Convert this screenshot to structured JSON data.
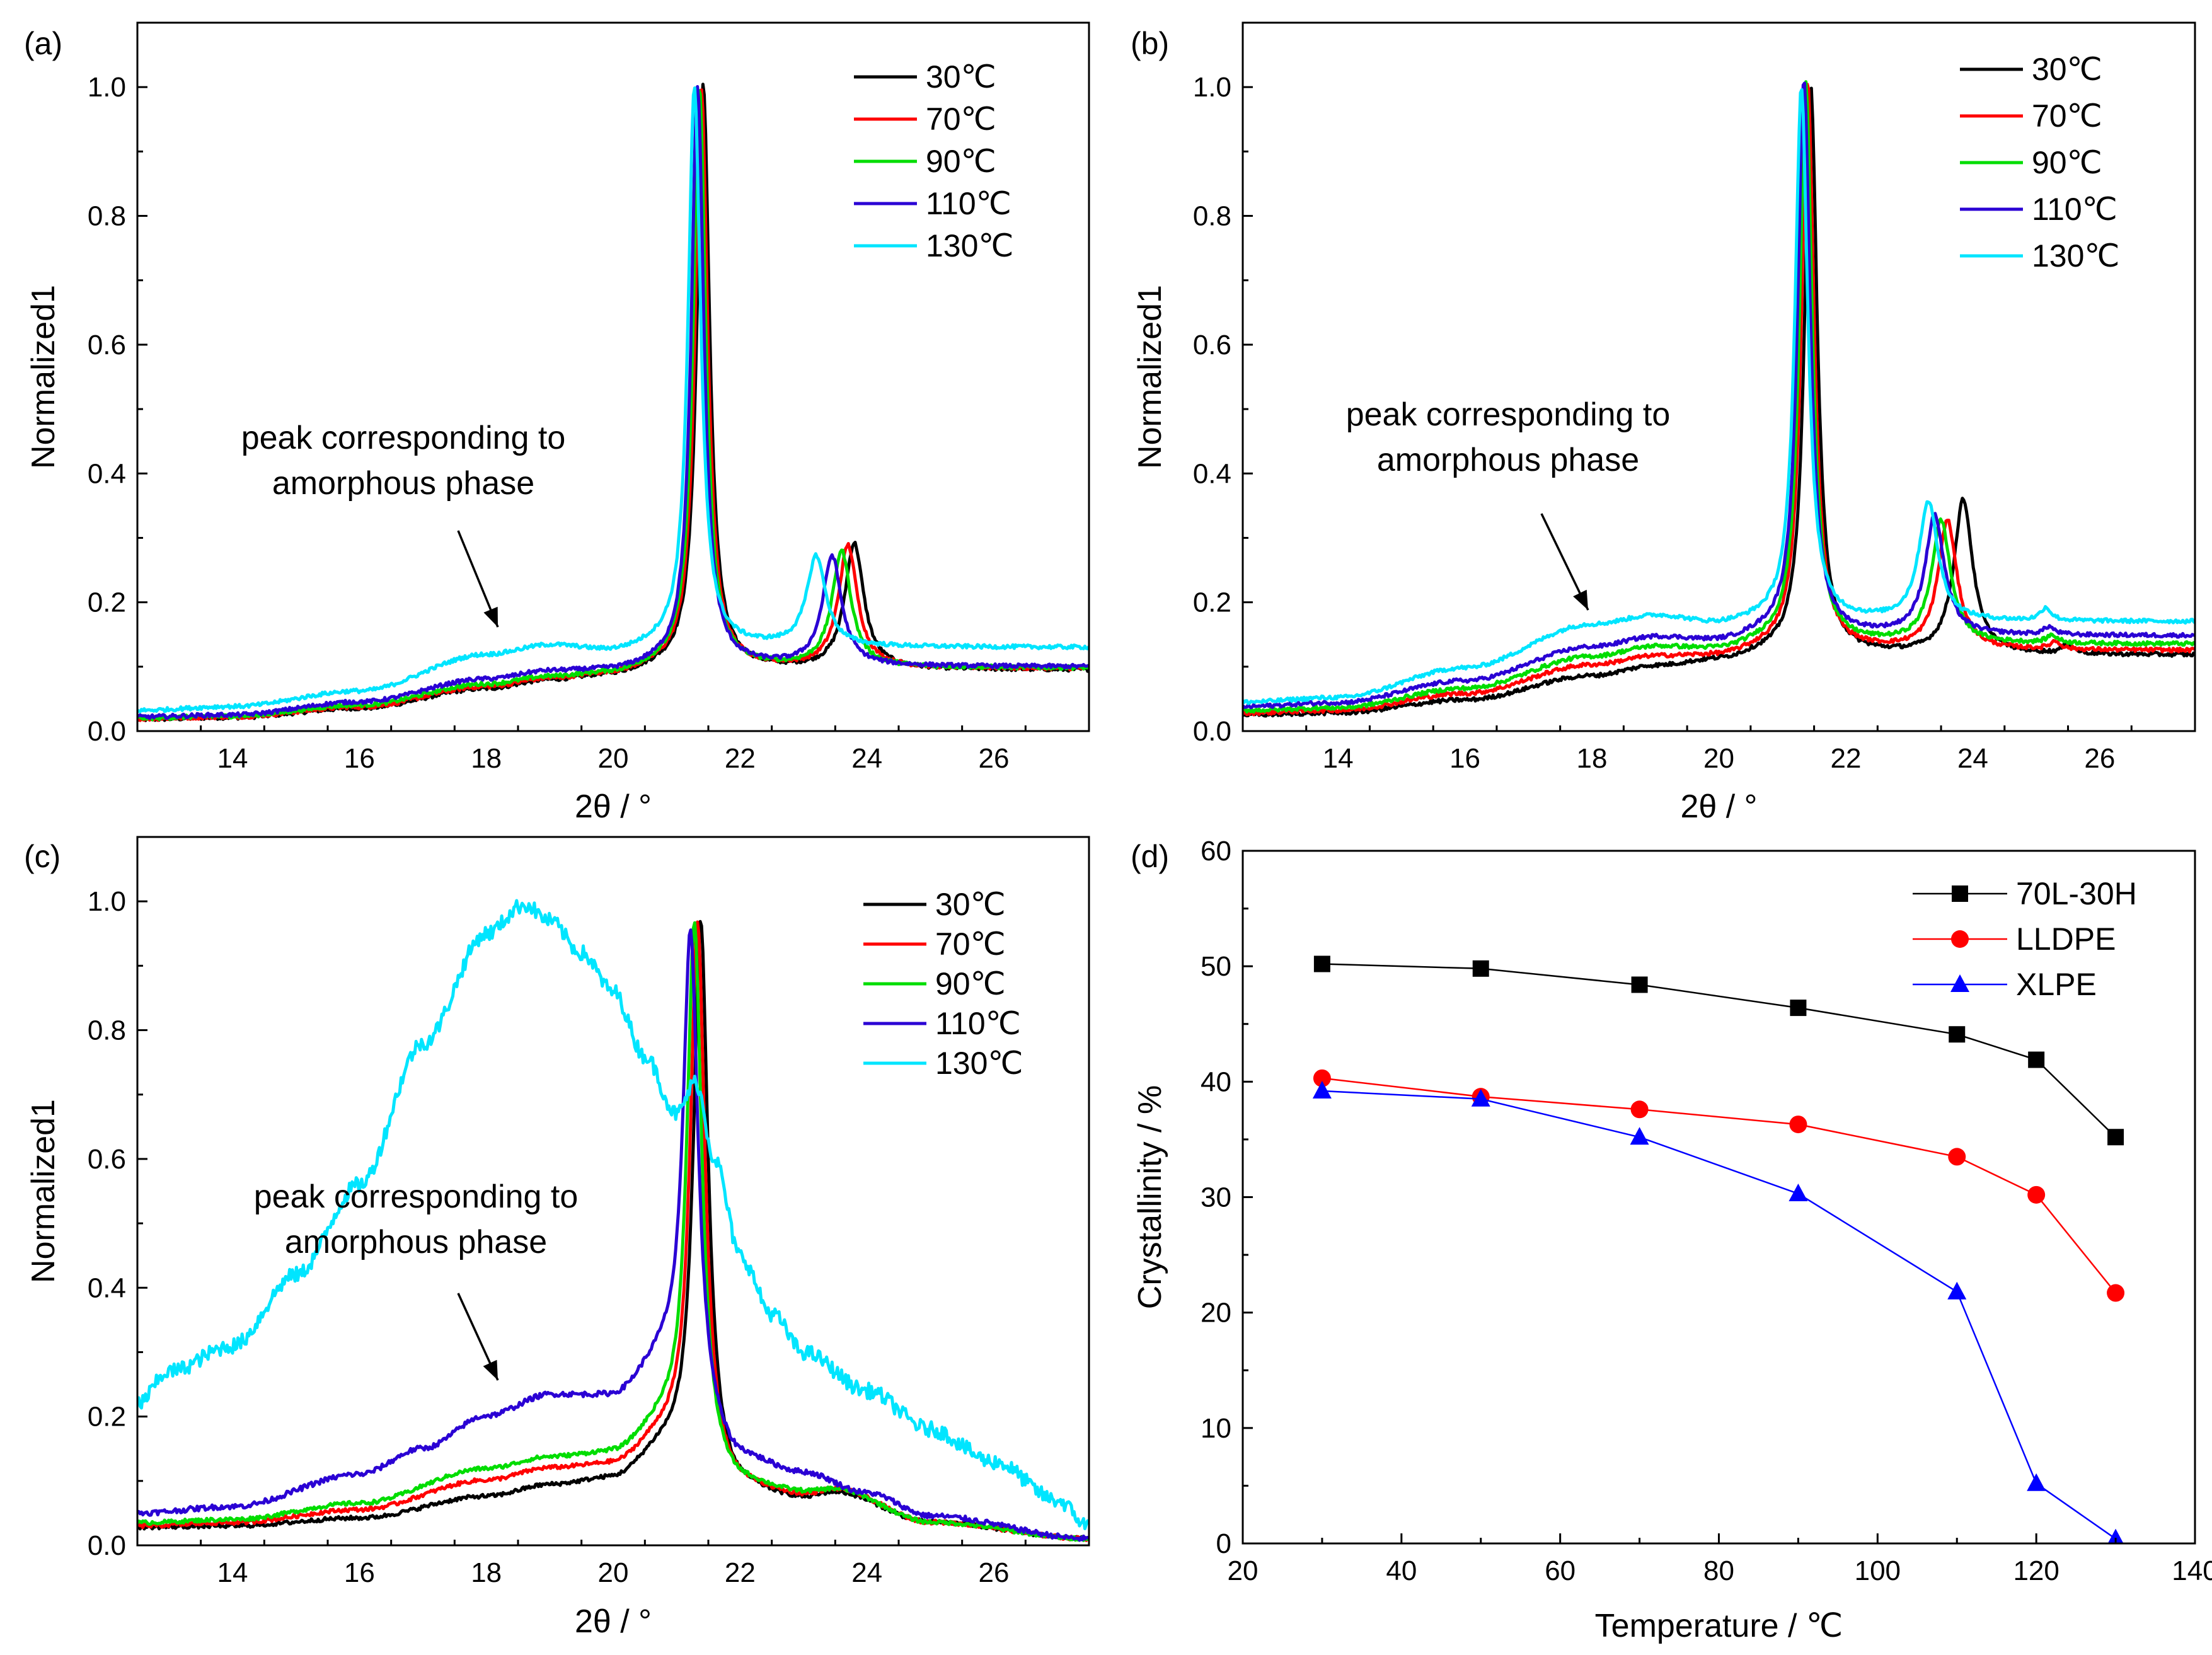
{
  "panels": [
    {
      "id": "a",
      "label": "(a)",
      "xlabel": "2θ / °",
      "ylabel": "Normalized1",
      "annotation": [
        "peak corresponding to",
        "amorphous phase"
      ]
    },
    {
      "id": "b",
      "label": "(b)",
      "xlabel": "2θ / °",
      "ylabel": "Normalized1",
      "annotation": [
        "peak corresponding to",
        "amorphous phase"
      ]
    },
    {
      "id": "c",
      "label": "(c)",
      "xlabel": "2θ / °",
      "ylabel": "Normalized1",
      "annotation": [
        "peak corresponding to",
        "amorphous phase"
      ]
    },
    {
      "id": "d",
      "label": "(d)",
      "xlabel": "Temperature / ℃",
      "ylabel": "Crystallinity / %"
    }
  ],
  "chart_data": [
    {
      "type": "line",
      "panel": "(a)",
      "xlabel": "2θ / °",
      "ylabel": "Normalized1",
      "xlim": [
        12.5,
        27.5
      ],
      "ylim": [
        0,
        1.1
      ],
      "xticks": [
        14,
        16,
        18,
        20,
        22,
        24,
        26
      ],
      "yticks": [
        0.0,
        0.2,
        0.4,
        0.6,
        0.8,
        1.0
      ],
      "ytick_labels": [
        "0.0",
        "0.2",
        "0.4",
        "0.6",
        "0.8",
        "1.0"
      ],
      "legend_position": "top-right",
      "annotation": "peak corresponding to amorphous phase",
      "series": [
        {
          "name": "30℃",
          "color": "#000000",
          "base": [
            [
              12.5,
              0.018
            ],
            [
              14,
              0.021
            ],
            [
              16,
              0.035
            ],
            [
              18,
              0.065
            ],
            [
              19,
              0.078
            ],
            [
              20,
              0.085
            ],
            [
              20.8,
              0.095
            ]
          ],
          "peaks": [
            [
              21.42,
              0.91,
              0.12
            ],
            [
              23.8,
              0.195,
              0.18
            ]
          ],
          "noise": 0.003
        },
        {
          "name": "70℃",
          "color": "#ff0000",
          "base": [
            [
              12.5,
              0.019
            ],
            [
              14,
              0.022
            ],
            [
              16,
              0.037
            ],
            [
              18,
              0.068
            ],
            [
              19,
              0.08
            ],
            [
              20,
              0.087
            ],
            [
              20.8,
              0.097
            ]
          ],
          "peaks": [
            [
              21.39,
              0.9,
              0.12
            ],
            [
              23.7,
              0.19,
              0.18
            ]
          ],
          "noise": 0.003
        },
        {
          "name": "90℃",
          "color": "#00dd00",
          "base": [
            [
              12.5,
              0.02
            ],
            [
              14,
              0.023
            ],
            [
              16,
              0.04
            ],
            [
              18,
              0.072
            ],
            [
              19,
              0.083
            ],
            [
              20,
              0.088
            ],
            [
              20.8,
              0.098
            ]
          ],
          "peaks": [
            [
              21.36,
              0.9,
              0.12
            ],
            [
              23.6,
              0.18,
              0.18
            ]
          ],
          "noise": 0.003
        },
        {
          "name": "110℃",
          "color": "#2a00d4",
          "base": [
            [
              12.5,
              0.022
            ],
            [
              14,
              0.025
            ],
            [
              16,
              0.045
            ],
            [
              18,
              0.08
            ],
            [
              19,
              0.092
            ],
            [
              20,
              0.093
            ],
            [
              20.8,
              0.1
            ]
          ],
          "peaks": [
            [
              21.33,
              0.9,
              0.12
            ],
            [
              23.45,
              0.17,
              0.18
            ]
          ],
          "noise": 0.003
        },
        {
          "name": "130℃",
          "color": "#00e5ff",
          "base": [
            [
              12.5,
              0.032
            ],
            [
              14,
              0.038
            ],
            [
              16,
              0.062
            ],
            [
              18,
              0.118
            ],
            [
              19,
              0.132
            ],
            [
              20,
              0.122
            ],
            [
              20.8,
              0.13
            ]
          ],
          "peaks": [
            [
              21.28,
              0.87,
              0.12
            ],
            [
              23.2,
              0.14,
              0.18
            ]
          ],
          "noise": 0.003
        }
      ]
    },
    {
      "type": "line",
      "panel": "(b)",
      "xlabel": "2θ / °",
      "ylabel": "Normalized1",
      "xlim": [
        12.5,
        27.5
      ],
      "ylim": [
        0,
        1.1
      ],
      "xticks": [
        14,
        16,
        18,
        20,
        22,
        24,
        26
      ],
      "yticks": [
        0.0,
        0.2,
        0.4,
        0.6,
        0.8,
        1.0
      ],
      "ytick_labels": [
        "0.0",
        "0.2",
        "0.4",
        "0.6",
        "0.8",
        "1.0"
      ],
      "legend_position": "top-right",
      "annotation": "peak corresponding to amorphous phase",
      "series": [
        {
          "name": "30℃",
          "color": "#000000",
          "base": [
            [
              12.5,
              0.025
            ],
            [
              14,
              0.028
            ],
            [
              16,
              0.048
            ],
            [
              18,
              0.085
            ],
            [
              19,
              0.1
            ],
            [
              20,
              0.108
            ],
            [
              20.8,
              0.118
            ]
          ],
          "peaks": [
            [
              21.45,
              0.88,
              0.12
            ],
            [
              23.85,
              0.24,
              0.18
            ],
            [
              25.5,
              0.015,
              0.1
            ]
          ],
          "noise": 0.003
        },
        {
          "name": "70℃",
          "color": "#ff0000",
          "base": [
            [
              12.5,
              0.028
            ],
            [
              14,
              0.032
            ],
            [
              16,
              0.058
            ],
            [
              18,
              0.102
            ],
            [
              19,
              0.115
            ],
            [
              20,
              0.115
            ],
            [
              20.8,
              0.125
            ]
          ],
          "peaks": [
            [
              21.4,
              0.88,
              0.12
            ],
            [
              23.6,
              0.2,
              0.18
            ],
            [
              25.3,
              0.012,
              0.1
            ]
          ],
          "noise": 0.003
        },
        {
          "name": "90℃",
          "color": "#00dd00",
          "base": [
            [
              12.5,
              0.032
            ],
            [
              14,
              0.036
            ],
            [
              16,
              0.066
            ],
            [
              18,
              0.115
            ],
            [
              19,
              0.13
            ],
            [
              20,
              0.125
            ],
            [
              20.8,
              0.135
            ]
          ],
          "peaks": [
            [
              21.37,
              0.87,
              0.12
            ],
            [
              23.5,
              0.19,
              0.18
            ],
            [
              25.25,
              0.012,
              0.1
            ]
          ],
          "noise": 0.003
        },
        {
          "name": "110℃",
          "color": "#2a00d4",
          "base": [
            [
              12.5,
              0.038
            ],
            [
              14,
              0.044
            ],
            [
              16,
              0.078
            ],
            [
              18,
              0.13
            ],
            [
              19,
              0.145
            ],
            [
              20,
              0.138
            ],
            [
              20.8,
              0.148
            ]
          ],
          "peaks": [
            [
              21.34,
              0.86,
              0.12
            ],
            [
              23.4,
              0.185,
              0.18
            ],
            [
              25.2,
              0.012,
              0.1
            ]
          ],
          "noise": 0.003
        },
        {
          "name": "130℃",
          "color": "#00e5ff",
          "base": [
            [
              12.5,
              0.045
            ],
            [
              14,
              0.052
            ],
            [
              16,
              0.098
            ],
            [
              18,
              0.165
            ],
            [
              19,
              0.178
            ],
            [
              20,
              0.165
            ],
            [
              20.8,
              0.17
            ]
          ],
          "peaks": [
            [
              21.3,
              0.83,
              0.12
            ],
            [
              23.3,
              0.185,
              0.18
            ],
            [
              25.15,
              0.02,
              0.1
            ]
          ],
          "noise": 0.003
        }
      ]
    },
    {
      "type": "line",
      "panel": "(c)",
      "xlabel": "2θ / °",
      "ylabel": "Normalized1",
      "xlim": [
        12.5,
        27.5
      ],
      "ylim": [
        0,
        1.1
      ],
      "xticks": [
        14,
        16,
        18,
        20,
        22,
        24,
        26
      ],
      "yticks": [
        0.0,
        0.2,
        0.4,
        0.6,
        0.8,
        1.0
      ],
      "ytick_labels": [
        "0.0",
        "0.2",
        "0.4",
        "0.6",
        "0.8",
        "1.0"
      ],
      "legend_position": "top-right",
      "annotation": "peak corresponding to amorphous phase",
      "series": [
        {
          "name": "30℃",
          "color": "#000000",
          "base": [
            [
              12.5,
              0.028
            ],
            [
              14,
              0.03
            ],
            [
              16,
              0.042
            ],
            [
              18,
              0.075
            ],
            [
              19,
              0.092
            ],
            [
              20,
              0.1
            ],
            [
              20.8,
              0.14
            ],
            [
              22,
              0.08
            ],
            [
              23,
              0.07
            ],
            [
              23.5,
              0.08
            ],
            [
              25,
              0.035
            ],
            [
              27.5,
              0.01
            ]
          ],
          "peaks": [
            [
              21.38,
              0.86,
              0.14
            ]
          ],
          "noise": 0.003
        },
        {
          "name": "70℃",
          "color": "#ff0000",
          "base": [
            [
              12.5,
              0.03
            ],
            [
              14,
              0.035
            ],
            [
              16,
              0.055
            ],
            [
              18,
              0.1
            ],
            [
              19,
              0.118
            ],
            [
              20,
              0.122
            ],
            [
              20.8,
              0.16
            ],
            [
              22,
              0.085
            ],
            [
              23,
              0.075
            ],
            [
              23.5,
              0.085
            ],
            [
              25,
              0.035
            ],
            [
              27.5,
              0.01
            ]
          ],
          "peaks": [
            [
              21.33,
              0.84,
              0.14
            ]
          ],
          "noise": 0.003
        },
        {
          "name": "90℃",
          "color": "#00dd00",
          "base": [
            [
              12.5,
              0.035
            ],
            [
              14,
              0.04
            ],
            [
              16,
              0.065
            ],
            [
              18,
              0.118
            ],
            [
              19,
              0.135
            ],
            [
              20,
              0.14
            ],
            [
              20.8,
              0.18
            ],
            [
              22,
              0.09
            ],
            [
              23,
              0.08
            ],
            [
              23.5,
              0.085
            ],
            [
              25,
              0.035
            ],
            [
              27.5,
              0.01
            ]
          ],
          "peaks": [
            [
              21.28,
              0.82,
              0.14
            ]
          ],
          "noise": 0.003
        },
        {
          "name": "110℃",
          "color": "#2a00d4",
          "base": [
            [
              12.5,
              0.05
            ],
            [
              14,
              0.06
            ],
            [
              16,
              0.11
            ],
            [
              17,
              0.15
            ],
            [
              18,
              0.2
            ],
            [
              19,
              0.232
            ],
            [
              20,
              0.228
            ],
            [
              20.8,
              0.28
            ],
            [
              22,
              0.13
            ],
            [
              23,
              0.11
            ],
            [
              24,
              0.08
            ],
            [
              25,
              0.045
            ],
            [
              27.5,
              0.01
            ]
          ],
          "peaks": [
            [
              21.22,
              0.72,
              0.14
            ]
          ],
          "noise": 0.004
        },
        {
          "name": "130℃",
          "color": "#00e5ff",
          "base": [
            [
              12.5,
              0.22
            ],
            [
              13,
              0.27
            ],
            [
              14,
              0.31
            ],
            [
              15,
              0.42
            ],
            [
              16,
              0.56
            ],
            [
              17,
              0.78
            ],
            [
              18,
              0.95
            ],
            [
              18.6,
              0.995
            ],
            [
              19,
              0.97
            ],
            [
              19.5,
              0.92
            ],
            [
              20,
              0.86
            ],
            [
              20.5,
              0.76
            ],
            [
              21,
              0.67
            ],
            [
              21.3,
              0.72
            ],
            [
              21.6,
              0.6
            ],
            [
              22,
              0.45
            ],
            [
              22.5,
              0.36
            ],
            [
              23,
              0.3
            ],
            [
              24,
              0.24
            ],
            [
              25,
              0.18
            ],
            [
              26,
              0.13
            ],
            [
              27,
              0.07
            ],
            [
              27.5,
              0.03
            ]
          ],
          "peaks": [],
          "noise": 0.012
        }
      ]
    },
    {
      "type": "line",
      "panel": "(d)",
      "xlabel": "Temperature / ℃",
      "ylabel": "Crystallinity / %",
      "xlim": [
        20,
        140
      ],
      "ylim": [
        0,
        60
      ],
      "xticks": [
        20,
        40,
        60,
        80,
        100,
        120,
        140
      ],
      "yticks": [
        0,
        10,
        20,
        30,
        40,
        50,
        60
      ],
      "legend_position": "top-right",
      "series": [
        {
          "name": "70L-30H",
          "color": "#000000",
          "marker": "square",
          "x": [
            30,
            50,
            70,
            90,
            110,
            120,
            130
          ],
          "y": [
            50.2,
            49.8,
            48.4,
            46.4,
            44.1,
            41.9,
            35.2
          ]
        },
        {
          "name": "LLDPE",
          "color": "#ff0000",
          "marker": "circle",
          "x": [
            30,
            50,
            70,
            90,
            110,
            120,
            130
          ],
          "y": [
            40.3,
            38.7,
            37.6,
            36.3,
            33.5,
            30.2,
            21.7
          ]
        },
        {
          "name": "XLPE",
          "color": "#0000ff",
          "marker": "triangle",
          "x": [
            30,
            50,
            70,
            90,
            110,
            120,
            130
          ],
          "y": [
            39.2,
            38.5,
            35.2,
            30.3,
            21.8,
            5.2,
            0.4
          ]
        }
      ]
    }
  ]
}
